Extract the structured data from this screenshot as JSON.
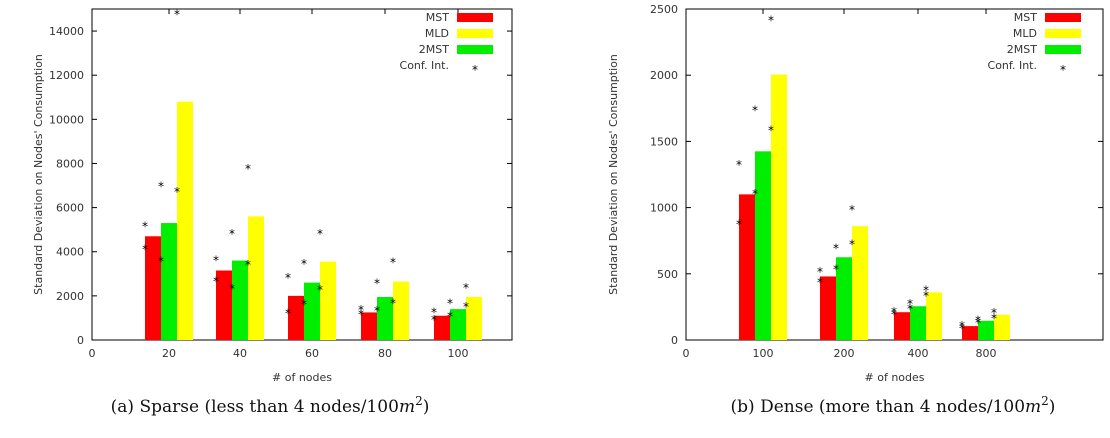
{
  "chart_data": [
    {
      "type": "bar",
      "caption": "(a)  Sparse (less than 4 nodes/100",
      "caption_m": "m",
      "caption_sup": "2",
      "caption_end": ")",
      "xlabel": "# of nodes",
      "ylabel": "Standard Deviation on Nodes' Consumption",
      "ylim": [
        0,
        15000
      ],
      "yticks": [
        0,
        2000,
        4000,
        6000,
        8000,
        10000,
        12000,
        14000
      ],
      "x_origin_label": "0",
      "categories": [
        "20",
        "40",
        "60",
        "80",
        "100"
      ],
      "series": [
        {
          "name": "MST",
          "color": "#ff0000",
          "values": [
            4700,
            3150,
            2000,
            1250,
            1100
          ],
          "ci": [
            [
              4150,
              5200
            ],
            [
              2700,
              3650
            ],
            [
              1250,
              2850
            ],
            [
              1200,
              1400
            ],
            [
              950,
              1300
            ]
          ]
        },
        {
          "name": "2MST",
          "color": "#00ee00",
          "values": [
            5300,
            3600,
            2600,
            1950,
            1400
          ],
          "ci": [
            [
              3600,
              7000
            ],
            [
              2350,
              4850
            ],
            [
              1650,
              3500
            ],
            [
              1350,
              2600
            ],
            [
              1100,
              1700
            ]
          ]
        },
        {
          "name": "MLD",
          "color": "#ffff00",
          "values": [
            10800,
            5600,
            3550,
            2650,
            1950
          ],
          "ci": [
            [
              6750,
              14800
            ],
            [
              3450,
              7800
            ],
            [
              2300,
              4850
            ],
            [
              1700,
              3550
            ],
            [
              1550,
              2400
            ]
          ]
        }
      ],
      "legend": {
        "placement": "top-right",
        "entries": [
          "MST",
          "MLD",
          "2MST",
          "Conf. Int."
        ]
      }
    },
    {
      "type": "bar",
      "caption": "(b)  Dense (more than 4 nodes/100",
      "caption_m": "m",
      "caption_sup": "2",
      "caption_end": ")",
      "xlabel": "# of nodes",
      "ylabel": "Standard Deviation on Nodes' Consumption",
      "ylim": [
        0,
        2500
      ],
      "yticks": [
        0,
        500,
        1000,
        1500,
        2000,
        2500
      ],
      "x_origin_label": "0",
      "categories": [
        "100",
        "200",
        "400",
        "800"
      ],
      "series": [
        {
          "name": "MST",
          "color": "#ff0000",
          "values": [
            1100,
            480,
            210,
            105
          ],
          "ci": [
            [
              880,
              1330
            ],
            [
              440,
              520
            ],
            [
              200,
              220
            ],
            [
              95,
              115
            ]
          ]
        },
        {
          "name": "2MST",
          "color": "#00ee00",
          "values": [
            1425,
            625,
            255,
            145
          ],
          "ci": [
            [
              1110,
              1740
            ],
            [
              540,
              700
            ],
            [
              240,
              280
            ],
            [
              135,
              155
            ]
          ]
        },
        {
          "name": "MLD",
          "color": "#ffff00",
          "values": [
            2005,
            860,
            360,
            190
          ],
          "ci": [
            [
              1590,
              2420
            ],
            [
              730,
              990
            ],
            [
              340,
              380
            ],
            [
              170,
              210
            ]
          ]
        }
      ],
      "legend": {
        "placement": "top-right",
        "entries": [
          "MST",
          "MLD",
          "2MST",
          "Conf. Int."
        ]
      }
    }
  ]
}
